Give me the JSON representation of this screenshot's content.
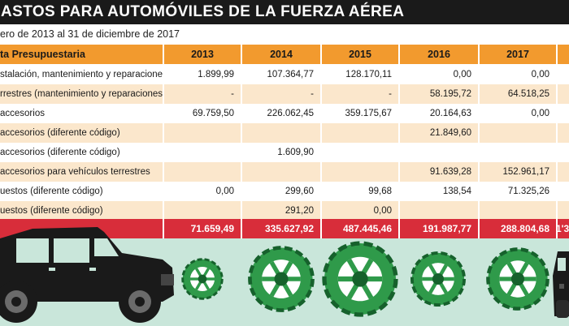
{
  "title": "ASTOS PARA AUTOMÓVILES DE LA FUERZA AÉREA",
  "subtitle": "ero de 2013 al 31 de diciembre de 2017",
  "header_label": "ta Presupuestaria",
  "years": [
    "2013",
    "2014",
    "2015",
    "2016",
    "2017"
  ],
  "rows": [
    {
      "label": "stalación, mantenimiento y reparaciones)",
      "values": [
        "1.899,99",
        "107.364,77",
        "128.170,11",
        "0,00",
        "0,00"
      ]
    },
    {
      "label": "rrestres (mantenimiento y reparaciones)",
      "values": [
        "-",
        "-",
        "-",
        "58.195,72",
        "64.518,25"
      ]
    },
    {
      "label": "accesorios",
      "values": [
        "69.759,50",
        "226.062,45",
        "359.175,67",
        "20.164,63",
        "0,00"
      ]
    },
    {
      "label": "accesorios (diferente código)",
      "values": [
        "",
        "",
        "",
        "21.849,60",
        ""
      ]
    },
    {
      "label": "accesorios (diferente código)",
      "values": [
        "",
        "1.609,90",
        "",
        "",
        ""
      ]
    },
    {
      "label": "accesorios para vehículos terrestres",
      "values": [
        "",
        "",
        "",
        "91.639,28",
        "152.961,17"
      ]
    },
    {
      "label": "uestos (diferente código)",
      "values": [
        "0,00",
        "299,60",
        "99,68",
        "138,54",
        "71.325,26"
      ]
    },
    {
      "label": "uestos (diferente código)",
      "values": [
        "",
        "291,20",
        "0,00",
        "",
        ""
      ]
    }
  ],
  "totals": [
    "71.659,49",
    "335.627,92",
    "487.445,46",
    "191.987,77",
    "288.804,68"
  ],
  "totals_extra": "1'3",
  "chart_data": {
    "type": "table",
    "title": "ASTOS PARA AUTOMÓVILES DE LA FUERZA AÉREA",
    "subtitle": "ero de 2013 al 31 de diciembre de 2017",
    "columns": [
      "ta Presupuestaria",
      "2013",
      "2014",
      "2015",
      "2016",
      "2017"
    ],
    "categories": [
      "2013",
      "2014",
      "2015",
      "2016",
      "2017"
    ],
    "series": [
      {
        "name": "stalación, mantenimiento y reparaciones)",
        "values": [
          1899.99,
          107364.77,
          128170.11,
          0,
          0
        ]
      },
      {
        "name": "rrestres (mantenimiento y reparaciones)",
        "values": [
          null,
          null,
          null,
          58195.72,
          64518.25
        ]
      },
      {
        "name": "accesorios",
        "values": [
          69759.5,
          226062.45,
          359175.67,
          20164.63,
          0
        ]
      },
      {
        "name": "accesorios (diferente código)",
        "values": [
          null,
          null,
          null,
          21849.6,
          null
        ]
      },
      {
        "name": "accesorios (diferente código)",
        "values": [
          null,
          1609.9,
          null,
          null,
          null
        ]
      },
      {
        "name": "accesorios para vehículos terrestres",
        "values": [
          null,
          null,
          null,
          91639.28,
          152961.17
        ]
      },
      {
        "name": "uestos (diferente código)",
        "values": [
          0,
          299.6,
          99.68,
          138.54,
          71325.26
        ]
      },
      {
        "name": "uestos (diferente código)",
        "values": [
          null,
          291.2,
          0,
          null,
          null
        ]
      }
    ],
    "totals": [
      71659.49,
      335627.92,
      487445.46,
      191987.77,
      288804.68
    ],
    "wheel_sizes_relative_to_total": true
  },
  "colors": {
    "header": "#f29a2e",
    "total_bar": "#d82d3a",
    "alt_row": "#fbe7cc",
    "band": "#c9e6da",
    "wheel": "#2f9a4a",
    "wheel_dark": "#16612c"
  }
}
